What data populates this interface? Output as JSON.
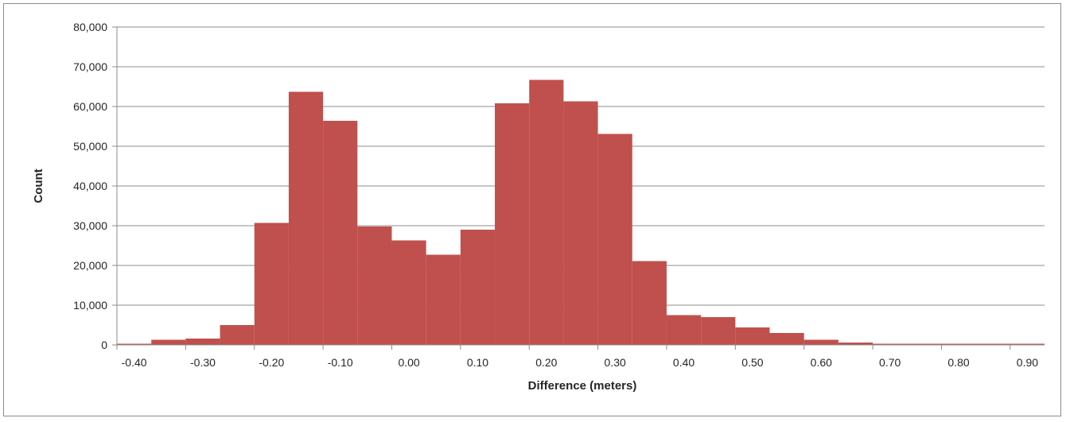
{
  "chart_data": {
    "type": "bar",
    "title": "",
    "xlabel": "Difference (meters)",
    "ylabel": "Count",
    "ylim": [
      0,
      80000
    ],
    "xlim": [
      -0.425,
      0.925
    ],
    "bin_width": 0.05,
    "grid": true,
    "legend": "none",
    "bar_color": "#c0504d",
    "y_ticks": [
      "0",
      "10,000",
      "20,000",
      "30,000",
      "40,000",
      "50,000",
      "60,000",
      "70,000",
      "80,000"
    ],
    "x_ticks": [
      "-0.40",
      "-0.30",
      "-0.20",
      "-0.10",
      "0.00",
      "0.10",
      "0.20",
      "0.30",
      "0.40",
      "0.50",
      "0.60",
      "0.70",
      "0.80",
      "0.90"
    ],
    "bins": [
      {
        "x": -0.4,
        "value": 300
      },
      {
        "x": -0.35,
        "value": 1300
      },
      {
        "x": -0.3,
        "value": 1600
      },
      {
        "x": -0.25,
        "value": 5000
      },
      {
        "x": -0.2,
        "value": 30700
      },
      {
        "x": -0.15,
        "value": 63700
      },
      {
        "x": -0.1,
        "value": 56400
      },
      {
        "x": -0.05,
        "value": 29800
      },
      {
        "x": 0.0,
        "value": 26300
      },
      {
        "x": 0.05,
        "value": 22700
      },
      {
        "x": 0.1,
        "value": 29000
      },
      {
        "x": 0.15,
        "value": 60800
      },
      {
        "x": 0.2,
        "value": 66700
      },
      {
        "x": 0.25,
        "value": 61300
      },
      {
        "x": 0.3,
        "value": 53100
      },
      {
        "x": 0.35,
        "value": 21100
      },
      {
        "x": 0.4,
        "value": 7500
      },
      {
        "x": 0.45,
        "value": 7000
      },
      {
        "x": 0.5,
        "value": 4400
      },
      {
        "x": 0.55,
        "value": 3000
      },
      {
        "x": 0.6,
        "value": 1300
      },
      {
        "x": 0.65,
        "value": 600
      },
      {
        "x": 0.7,
        "value": 300
      },
      {
        "x": 0.75,
        "value": 300
      },
      {
        "x": 0.8,
        "value": 300
      },
      {
        "x": 0.85,
        "value": 300
      },
      {
        "x": 0.9,
        "value": 300
      }
    ]
  }
}
